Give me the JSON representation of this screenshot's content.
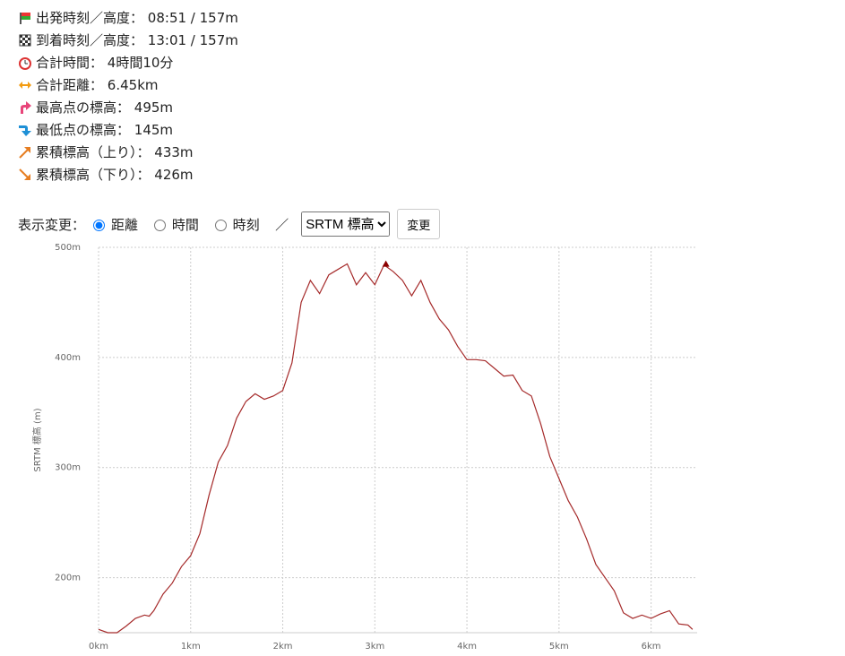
{
  "info": [
    {
      "label": "出発時刻／高度：",
      "value": "08:51 / 157m"
    },
    {
      "label": "到着時刻／高度：",
      "value": "13:01 / 157m"
    },
    {
      "label": "合計時間：",
      "value": "4時間10分"
    },
    {
      "label": "合計距離：",
      "value": "6.45km"
    },
    {
      "label": "最高点の標高：",
      "value": "495m"
    },
    {
      "label": "最低点の標高：",
      "value": "145m"
    },
    {
      "label": "累積標高（上り）：",
      "value": "433m"
    },
    {
      "label": "累積標高（下り）：",
      "value": "426m"
    }
  ],
  "controls": {
    "label": "表示変更：",
    "options": [
      "距離",
      "時間",
      "時刻"
    ],
    "separator": "／",
    "select": "SRTM 標高",
    "button": "変更"
  },
  "chart_data": {
    "type": "line",
    "y_label": "SRTM 標高 (m)",
    "color": "#a52a2a",
    "x": [
      0,
      0.1,
      0.2,
      0.3,
      0.4,
      0.5,
      0.55,
      0.6,
      0.7,
      0.8,
      0.9,
      1.0,
      1.1,
      1.2,
      1.3,
      1.4,
      1.5,
      1.6,
      1.7,
      1.8,
      1.9,
      2.0,
      2.1,
      2.2,
      2.3,
      2.4,
      2.5,
      2.6,
      2.7,
      2.8,
      2.9,
      3.0,
      3.1,
      3.2,
      3.3,
      3.4,
      3.5,
      3.6,
      3.7,
      3.8,
      3.9,
      4.0,
      4.1,
      4.2,
      4.3,
      4.4,
      4.5,
      4.6,
      4.7,
      4.8,
      4.9,
      5.0,
      5.1,
      5.2,
      5.3,
      5.4,
      5.5,
      5.6,
      5.7,
      5.8,
      5.9,
      6.0,
      6.1,
      6.2,
      6.3,
      6.4,
      6.45
    ],
    "values": [
      153,
      150,
      150,
      156,
      163,
      166,
      165,
      170,
      185,
      195,
      210,
      220,
      240,
      275,
      305,
      320,
      345,
      360,
      367,
      362,
      365,
      370,
      395,
      450,
      470,
      458,
      475,
      480,
      485,
      466,
      477,
      466,
      484,
      478,
      470,
      456,
      470,
      450,
      435,
      425,
      410,
      398,
      398,
      397,
      390,
      383,
      384,
      370,
      365,
      340,
      310,
      290,
      270,
      255,
      235,
      212,
      200,
      188,
      168,
      163,
      166,
      163,
      167,
      170,
      158,
      157,
      153
    ],
    "marker": {
      "x": 3.12,
      "y": 484,
      "color": "#8b0000"
    },
    "xlim": [
      0,
      6.5
    ],
    "ylim": [
      150,
      500
    ],
    "xticks": [
      {
        "value": 0,
        "label": "0km"
      },
      {
        "value": 1,
        "label": "1km"
      },
      {
        "value": 2,
        "label": "2km"
      },
      {
        "value": 3,
        "label": "3km"
      },
      {
        "value": 4,
        "label": "4km"
      },
      {
        "value": 5,
        "label": "5km"
      },
      {
        "value": 6,
        "label": "6km"
      }
    ],
    "yticks": [
      {
        "value": 200,
        "label": "200m"
      },
      {
        "value": 300,
        "label": "300m"
      },
      {
        "value": 400,
        "label": "400m"
      },
      {
        "value": 500,
        "label": "500m"
      }
    ],
    "grid": true
  }
}
